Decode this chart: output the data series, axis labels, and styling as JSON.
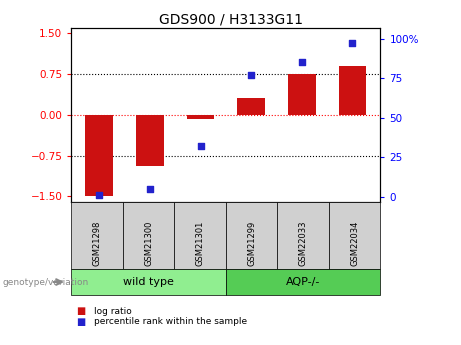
{
  "title": "GDS900 / H3133G11",
  "samples": [
    "GSM21298",
    "GSM21300",
    "GSM21301",
    "GSM21299",
    "GSM22033",
    "GSM22034"
  ],
  "log_ratio": [
    -1.5,
    -0.95,
    -0.08,
    0.3,
    0.75,
    0.9
  ],
  "percentile_rank": [
    1,
    5,
    32,
    77,
    85,
    97
  ],
  "bar_color": "#cc1111",
  "dot_color": "#2222cc",
  "ylim_left": [
    -1.6,
    1.6
  ],
  "ylim_right": [
    -3.2,
    107
  ],
  "yticks_left": [
    -1.5,
    -0.75,
    0,
    0.75,
    1.5
  ],
  "yticks_right": [
    0,
    25,
    50,
    75,
    100
  ],
  "yticklabels_right": [
    "0",
    "25",
    "50",
    "75",
    "100%"
  ],
  "bar_width": 0.55,
  "genotype_label": "genotype/variation",
  "legend_log_ratio": "log ratio",
  "legend_percentile": "percentile rank within the sample",
  "background_color": "#ffffff",
  "groups_info": [
    {
      "label": "wild type",
      "start": 0,
      "end": 3,
      "color": "#90ee90"
    },
    {
      "label": "AQP-/-",
      "start": 3,
      "end": 6,
      "color": "#55cc55"
    }
  ]
}
